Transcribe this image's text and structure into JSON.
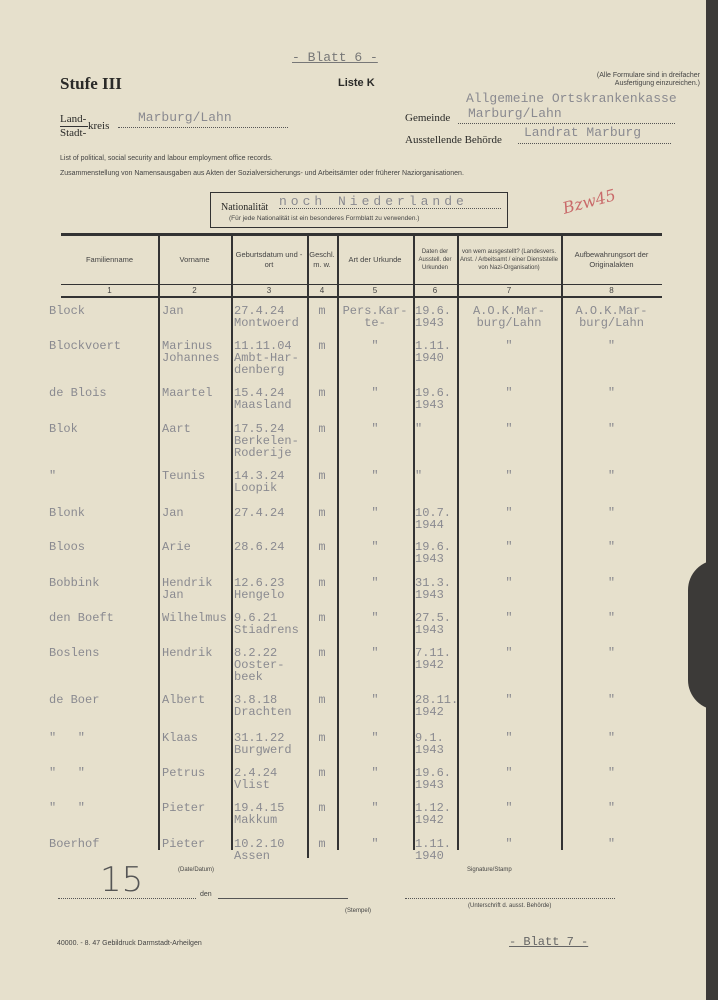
{
  "sheet_number_top": "- Blatt 6 -",
  "stufe": "Stufe III",
  "liste": "Liste K",
  "note_top_right": [
    "(Alle Formulare sind in dreifacher",
    "Ausfertigung einzureichen.)"
  ],
  "landkreis": {
    "label_land": "Land-",
    "label_stadt": "Stadt-",
    "label_kreis": "kreis",
    "value": "Marburg/Lahn"
  },
  "gemeinde": {
    "label": "Gemeinde",
    "value_line1": "Allgemeine Ortskrankenkasse",
    "value": "Marburg/Lahn"
  },
  "behoerde": {
    "label": "Ausstellende Behörde",
    "value": "Landrat Marburg"
  },
  "desc_en": "List of political, social security and labour employment office records.",
  "desc_de": "Zusammenstellung von Namensausgaben aus Akten der Sozialversicherungs- und Arbeitsämter oder früherer Naziorganisationen.",
  "nationality": {
    "label": "Nationalität",
    "value": "noch Niederlande",
    "note": "(Für jede Nationalität ist ein besonderes Formblatt zu verwenden.)"
  },
  "handwritten_mark": "Bzw45",
  "columns": [
    {
      "label": "Familienname",
      "num": "1"
    },
    {
      "label": "Vorname",
      "num": "2"
    },
    {
      "label": "Geburtsdatum und -ort",
      "num": "3"
    },
    {
      "label": "Geschl. m. w.",
      "num": "4"
    },
    {
      "label": "Art der Urkunde",
      "num": "5"
    },
    {
      "label": "Daten der Ausstell. der Urkunden",
      "num": "6"
    },
    {
      "label": "von wem ausgestellt? (Landesvers. Anst. / Arbeitsamt / einer Dienststelle von Nazi-Organisation)",
      "num": "7"
    },
    {
      "label": "Aufbewahrungsort der Originalakten",
      "num": "8"
    }
  ],
  "rows": [
    [
      "Block",
      "Jan",
      "27.4.24\nMontwoerd",
      "m",
      "Pers.Kar-\nte-",
      "19.6.\n1943",
      "A.O.K.Mar-\nburg/Lahn",
      "A.O.K.Mar-\nburg/Lahn"
    ],
    [
      "Blockvoert",
      "Marinus\nJohannes",
      "11.11.04\nAmbt-Har-\ndenberg",
      "m",
      "\"",
      "1.11.\n1940",
      "\"",
      "\""
    ],
    [
      "de Blois",
      "Maartel",
      "15.4.24\nMaasland",
      "m",
      "\"",
      "19.6.\n1943",
      "\"",
      "\""
    ],
    [
      "Blok",
      "Aart",
      "17.5.24\nBerkelen-\nRoderije",
      "m",
      "\"",
      "\"",
      "\"",
      "\""
    ],
    [
      "\"",
      "Teunis",
      "14.3.24\nLoopik",
      "m",
      "\"",
      "\"",
      "\"",
      "\""
    ],
    [
      "Blonk",
      "Jan",
      "27.4.24",
      "m",
      "\"",
      "10.7.\n1944",
      "\"",
      "\""
    ],
    [
      "Bloos",
      "Arie",
      "28.6.24",
      "m",
      "\"",
      "19.6.\n1943",
      "\"",
      "\""
    ],
    [
      "Bobbink",
      "Hendrik\nJan",
      "12.6.23\nHengelo",
      "m",
      "\"",
      "31.3.\n1943",
      "\"",
      "\""
    ],
    [
      "den Boeft",
      "Wilhelmus",
      "9.6.21\nStiadrens",
      "m",
      "\"",
      "27.5.\n1943",
      "\"",
      "\""
    ],
    [
      "Boslens",
      "Hendrik",
      "8.2.22\nOoster-\nbeek",
      "m",
      "\"",
      "7.11.\n1942",
      "\"",
      "\""
    ],
    [
      "de Boer",
      "Albert",
      "3.8.18\nDrachten",
      "m",
      "\"",
      "28.11.\n1942",
      "\"",
      "\""
    ],
    [
      "\"   \"",
      "Klaas",
      "31.1.22\nBurgwerd",
      "m",
      "\"",
      "9.1.\n1943",
      "\"",
      "\""
    ],
    [
      "\"   \"",
      "Petrus",
      "2.4.24\nVlist",
      "m",
      "\"",
      "19.6.\n1943",
      "\"",
      "\""
    ],
    [
      "\"   \"",
      "Pieter",
      "19.4.15\nMakkum",
      "m",
      "\"",
      "1.12.\n1942",
      "\"",
      "\""
    ],
    [
      "Boerhof",
      "Pieter",
      "10.2.10\nAssen",
      "m",
      "\"",
      "1.11.\n1940",
      "\"",
      "\""
    ]
  ],
  "footer": {
    "date_label": "(Date/Datum)",
    "signature_label": "Signature/Stamp",
    "den": "den",
    "stempel": "(Stempel)",
    "unterschrift": "(Unterschrift d. ausst. Behörde)",
    "handwritten_count": "15",
    "printer": "40000. - 8. 47  Gebildruck  Darmstadt-Arheilgen",
    "next_sheet": "- Blatt 7 -"
  }
}
